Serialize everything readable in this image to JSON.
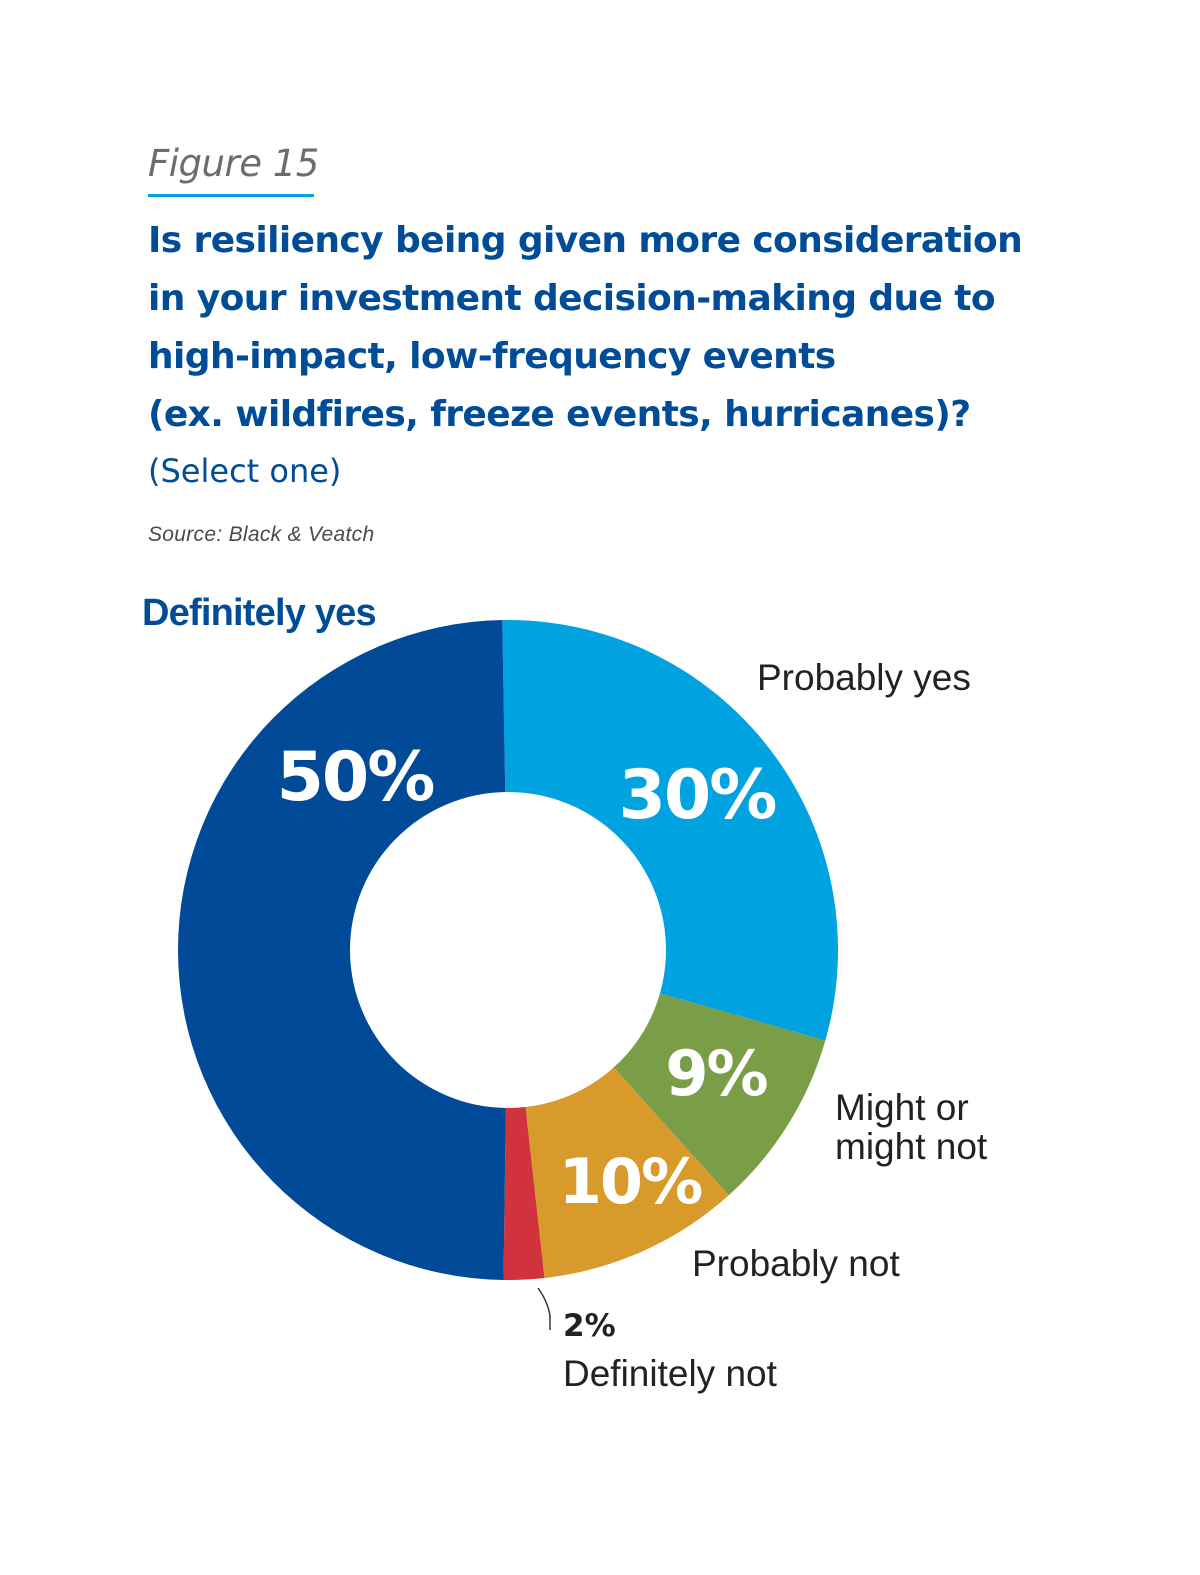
{
  "header": {
    "figure_label": "Figure 15",
    "question_lines": [
      "Is resiliency being given more consideration",
      "in your investment decision-making due to",
      "high-impact, low-frequency events",
      "(ex. wildfires, freeze events, hurricanes)?"
    ],
    "instruction": "(Select one)",
    "source": "Source: Black & Veatch"
  },
  "colors": {
    "accent_underline": "#00a3e0",
    "title_blue": "#004c97"
  },
  "chart_data": {
    "type": "pie",
    "subtype": "donut",
    "title": "Is resiliency being given more consideration in your investment decision-making due to high-impact, low-frequency events (ex. wildfires, freeze events, hurricanes)?",
    "slices": [
      {
        "label": "Probably yes",
        "value": 30,
        "value_label": "30%",
        "color": "#00a3e0"
      },
      {
        "label": "Might or might not",
        "label_lines": [
          "Might or",
          "might not"
        ],
        "value": 9,
        "value_label": "9%",
        "color": "#7a9e47"
      },
      {
        "label": "Probably not",
        "value": 10,
        "value_label": "10%",
        "color": "#d89b2b"
      },
      {
        "label": "Definitely not",
        "value": 2,
        "value_label": "2%",
        "color": "#d0333b"
      },
      {
        "label": "Definitely yes",
        "value": 50,
        "value_label": "50%",
        "color": "#004a98"
      }
    ]
  }
}
